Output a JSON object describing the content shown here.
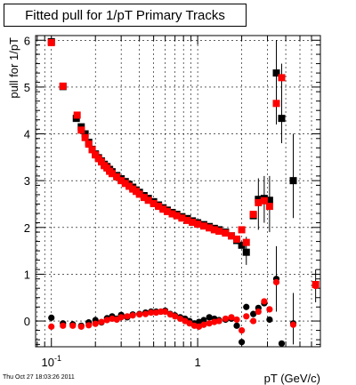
{
  "title": "Fitted pull for 1/pT  Primary Tracks",
  "timestamp": "Thu Oct 27 18:03:26 2011",
  "chart_data": {
    "type": "scatter",
    "xlabel": "pT (GeV/c)",
    "ylabel": "pull for 1/pT",
    "xscale": "log",
    "xlim": [
      0.078,
      6.9
    ],
    "ylim": [
      -0.55,
      6.1
    ],
    "grid": true,
    "x_tick_labels": [
      {
        "value": 0.1,
        "label": "10^-1"
      },
      {
        "value": 1,
        "label": "1"
      }
    ],
    "y_ticks": [
      0,
      1,
      2,
      3,
      4,
      5,
      6
    ],
    "colors": {
      "series_1": "#000000",
      "series_2": "#ff0000"
    },
    "series": [
      {
        "marker": "square",
        "color": "#000000",
        "points": [
          [
            0.1,
            5.97
          ],
          [
            0.12,
            5.01
          ],
          [
            0.148,
            4.33
          ],
          [
            0.16,
            4.15
          ],
          [
            0.17,
            4.0
          ],
          [
            0.18,
            3.82
          ],
          [
            0.19,
            3.67
          ],
          [
            0.2,
            3.57
          ],
          [
            0.21,
            3.49
          ],
          [
            0.22,
            3.42
          ],
          [
            0.23,
            3.35
          ],
          [
            0.24,
            3.3
          ],
          [
            0.25,
            3.24
          ],
          [
            0.26,
            3.19
          ],
          [
            0.28,
            3.11
          ],
          [
            0.3,
            3.04
          ],
          [
            0.32,
            2.98
          ],
          [
            0.34,
            2.92
          ],
          [
            0.36,
            2.86
          ],
          [
            0.38,
            2.8
          ],
          [
            0.4,
            2.75
          ],
          [
            0.43,
            2.68
          ],
          [
            0.46,
            2.62
          ],
          [
            0.5,
            2.55
          ],
          [
            0.54,
            2.48
          ],
          [
            0.58,
            2.42
          ],
          [
            0.62,
            2.37
          ],
          [
            0.67,
            2.32
          ],
          [
            0.72,
            2.28
          ],
          [
            0.78,
            2.23
          ],
          [
            0.85,
            2.19
          ],
          [
            0.92,
            2.14
          ],
          [
            1.0,
            2.1
          ],
          [
            1.1,
            2.06
          ],
          [
            1.2,
            2.02
          ],
          [
            1.3,
            1.98
          ],
          [
            1.4,
            1.95
          ],
          [
            1.55,
            1.9
          ],
          [
            1.7,
            1.82
          ],
          [
            1.85,
            1.72
          ],
          [
            2.0,
            1.62
          ],
          [
            2.15,
            1.47
          ],
          [
            2.4,
            2.25
          ],
          [
            2.6,
            2.6
          ],
          [
            2.85,
            2.62
          ],
          [
            3.1,
            2.58
          ],
          [
            3.45,
            5.3
          ],
          [
            3.75,
            4.33
          ],
          [
            4.5,
            3.0
          ]
        ]
      },
      {
        "marker": "square",
        "color": "#ff0000",
        "points": [
          [
            0.1,
            5.95
          ],
          [
            0.12,
            5.02
          ],
          [
            0.15,
            4.4
          ],
          [
            0.16,
            4.08
          ],
          [
            0.17,
            3.92
          ],
          [
            0.18,
            3.78
          ],
          [
            0.19,
            3.66
          ],
          [
            0.2,
            3.55
          ],
          [
            0.21,
            3.47
          ],
          [
            0.22,
            3.4
          ],
          [
            0.23,
            3.32
          ],
          [
            0.24,
            3.27
          ],
          [
            0.25,
            3.2
          ],
          [
            0.26,
            3.15
          ],
          [
            0.28,
            3.08
          ],
          [
            0.3,
            3.0
          ],
          [
            0.32,
            2.94
          ],
          [
            0.34,
            2.88
          ],
          [
            0.36,
            2.82
          ],
          [
            0.38,
            2.77
          ],
          [
            0.4,
            2.71
          ],
          [
            0.43,
            2.64
          ],
          [
            0.46,
            2.58
          ],
          [
            0.5,
            2.51
          ],
          [
            0.54,
            2.45
          ],
          [
            0.58,
            2.39
          ],
          [
            0.62,
            2.34
          ],
          [
            0.67,
            2.29
          ],
          [
            0.72,
            2.25
          ],
          [
            0.78,
            2.2
          ],
          [
            0.85,
            2.15
          ],
          [
            0.92,
            2.11
          ],
          [
            1.0,
            2.07
          ],
          [
            1.1,
            2.03
          ],
          [
            1.2,
            1.99
          ],
          [
            1.3,
            1.95
          ],
          [
            1.4,
            1.92
          ],
          [
            1.55,
            1.88
          ],
          [
            1.7,
            1.82
          ],
          [
            1.85,
            1.75
          ],
          [
            2.0,
            1.95
          ],
          [
            2.15,
            1.68
          ],
          [
            2.4,
            2.28
          ],
          [
            2.6,
            2.53
          ],
          [
            2.85,
            2.57
          ],
          [
            3.1,
            2.45
          ],
          [
            3.45,
            4.65
          ],
          [
            3.75,
            5.2
          ],
          [
            6.4,
            0.78
          ]
        ]
      },
      {
        "marker": "circle",
        "color": "#000000",
        "points": [
          [
            0.1,
            0.07
          ],
          [
            0.12,
            -0.05
          ],
          [
            0.14,
            -0.07
          ],
          [
            0.16,
            -0.1
          ],
          [
            0.18,
            -0.03
          ],
          [
            0.2,
            0.02
          ],
          [
            0.22,
            -0.03
          ],
          [
            0.24,
            0.06
          ],
          [
            0.26,
            0.1
          ],
          [
            0.28,
            0.05
          ],
          [
            0.3,
            0.13
          ],
          [
            0.33,
            0.08
          ],
          [
            0.36,
            0.14
          ],
          [
            0.4,
            0.15
          ],
          [
            0.44,
            0.18
          ],
          [
            0.48,
            0.2
          ],
          [
            0.52,
            0.2
          ],
          [
            0.56,
            0.2
          ],
          [
            0.6,
            0.22
          ],
          [
            0.65,
            0.15
          ],
          [
            0.7,
            0.12
          ],
          [
            0.76,
            0.08
          ],
          [
            0.82,
            0.05
          ],
          [
            0.88,
            0.0
          ],
          [
            0.95,
            -0.05
          ],
          [
            1.02,
            -0.02
          ],
          [
            1.1,
            0.02
          ],
          [
            1.2,
            0.08
          ],
          [
            1.3,
            0.05
          ],
          [
            1.4,
            0.02
          ],
          [
            1.55,
            0.03
          ],
          [
            1.7,
            0.05
          ],
          [
            1.85,
            -0.1
          ],
          [
            2.0,
            -0.45
          ],
          [
            2.15,
            0.3
          ],
          [
            2.4,
            0.15
          ],
          [
            2.6,
            0.28
          ],
          [
            2.85,
            0.38
          ],
          [
            3.1,
            0.03
          ],
          [
            3.45,
            0.9
          ],
          [
            3.75,
            -0.48
          ],
          [
            4.5,
            -0.05
          ]
        ]
      },
      {
        "marker": "circle",
        "color": "#ff0000",
        "points": [
          [
            0.1,
            -0.12
          ],
          [
            0.12,
            -0.1
          ],
          [
            0.14,
            -0.1
          ],
          [
            0.16,
            -0.12
          ],
          [
            0.18,
            -0.09
          ],
          [
            0.2,
            -0.06
          ],
          [
            0.22,
            -0.02
          ],
          [
            0.24,
            0.02
          ],
          [
            0.26,
            0.05
          ],
          [
            0.28,
            0.03
          ],
          [
            0.3,
            0.08
          ],
          [
            0.33,
            0.1
          ],
          [
            0.36,
            0.12
          ],
          [
            0.4,
            0.14
          ],
          [
            0.44,
            0.15
          ],
          [
            0.48,
            0.18
          ],
          [
            0.52,
            0.18
          ],
          [
            0.56,
            0.2
          ],
          [
            0.6,
            0.2
          ],
          [
            0.65,
            0.14
          ],
          [
            0.7,
            0.1
          ],
          [
            0.76,
            0.05
          ],
          [
            0.82,
            0.0
          ],
          [
            0.88,
            -0.05
          ],
          [
            0.95,
            -0.1
          ],
          [
            1.02,
            -0.12
          ],
          [
            1.1,
            -0.08
          ],
          [
            1.2,
            -0.05
          ],
          [
            1.3,
            -0.02
          ],
          [
            1.4,
            0.0
          ],
          [
            1.55,
            0.05
          ],
          [
            1.7,
            0.08
          ],
          [
            1.85,
            0.03
          ],
          [
            2.0,
            -0.2
          ],
          [
            2.15,
            0.1
          ],
          [
            2.4,
            0.0
          ],
          [
            2.6,
            0.2
          ],
          [
            2.85,
            0.42
          ],
          [
            3.1,
            0.25
          ],
          [
            3.45,
            0.83
          ],
          [
            4.5,
            -0.08
          ],
          [
            6.4,
            0.75
          ]
        ]
      }
    ]
  }
}
